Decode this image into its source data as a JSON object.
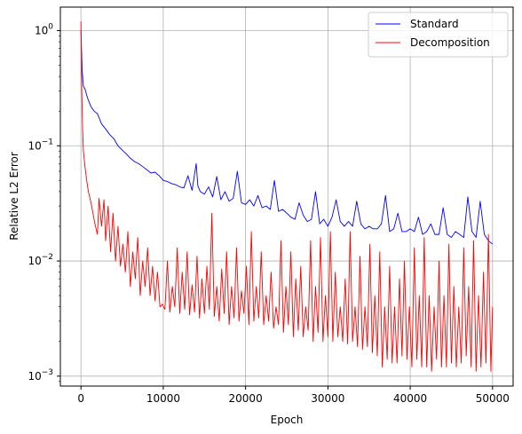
{
  "chart_data": {
    "type": "line",
    "title": "",
    "xlabel": "Epoch",
    "ylabel": "Relative L2 Error",
    "xlim": [
      -2500,
      52500
    ],
    "ylim": [
      0.00082,
      1.6
    ],
    "yscale": "log",
    "grid": true,
    "legend_position": "top-right",
    "x_ticks": [
      0,
      10000,
      20000,
      30000,
      40000,
      50000
    ],
    "x_tick_labels": [
      "0",
      "10000",
      "20000",
      "30000",
      "40000",
      "50000"
    ],
    "y_ticks": [
      {
        "value": 0.001,
        "mantissa": "10",
        "exp": "−3"
      },
      {
        "value": 0.01,
        "mantissa": "10",
        "exp": "−2"
      },
      {
        "value": 0.1,
        "mantissa": "10",
        "exp": "−1"
      },
      {
        "value": 1,
        "mantissa": "10",
        "exp": "0"
      }
    ],
    "series": [
      {
        "name": "Standard",
        "color": "#0000ff",
        "x": [
          0,
          150,
          300,
          500,
          800,
          1200,
          1600,
          2000,
          2500,
          3000,
          3500,
          4000,
          4500,
          5000,
          5500,
          6000,
          6500,
          7000,
          7500,
          8000,
          8500,
          9000,
          9500,
          10000,
          10500,
          11000,
          11500,
          12000,
          12500,
          13000,
          13500,
          14000,
          14200,
          14500,
          15000,
          15500,
          16000,
          16500,
          17000,
          17500,
          18000,
          18500,
          19000,
          19500,
          20000,
          20500,
          21000,
          21500,
          22000,
          22500,
          23000,
          23500,
          24000,
          24500,
          25000,
          25500,
          26000,
          26500,
          27000,
          27500,
          28000,
          28500,
          29000,
          29500,
          30000,
          30500,
          31000,
          31500,
          32000,
          32500,
          33000,
          33500,
          34000,
          34500,
          35000,
          35500,
          36000,
          36500,
          37000,
          37500,
          38000,
          38500,
          39000,
          39500,
          40000,
          40500,
          41000,
          41500,
          42000,
          42500,
          43000,
          43500,
          44000,
          44500,
          45000,
          45500,
          46000,
          46500,
          47000,
          47500,
          48000,
          48500,
          49000,
          49500,
          50000
        ],
        "y": [
          1.0,
          0.45,
          0.33,
          0.31,
          0.26,
          0.22,
          0.2,
          0.19,
          0.155,
          0.14,
          0.125,
          0.115,
          0.1,
          0.092,
          0.085,
          0.078,
          0.073,
          0.07,
          0.066,
          0.062,
          0.058,
          0.059,
          0.055,
          0.05,
          0.049,
          0.047,
          0.046,
          0.044,
          0.043,
          0.055,
          0.041,
          0.07,
          0.045,
          0.04,
          0.038,
          0.044,
          0.036,
          0.054,
          0.034,
          0.04,
          0.033,
          0.035,
          0.06,
          0.032,
          0.031,
          0.034,
          0.03,
          0.037,
          0.029,
          0.03,
          0.028,
          0.05,
          0.027,
          0.028,
          0.026,
          0.024,
          0.023,
          0.032,
          0.025,
          0.022,
          0.023,
          0.04,
          0.021,
          0.023,
          0.02,
          0.024,
          0.034,
          0.022,
          0.02,
          0.022,
          0.02,
          0.033,
          0.021,
          0.019,
          0.02,
          0.019,
          0.019,
          0.021,
          0.037,
          0.018,
          0.019,
          0.026,
          0.018,
          0.018,
          0.019,
          0.018,
          0.024,
          0.017,
          0.018,
          0.021,
          0.017,
          0.017,
          0.029,
          0.017,
          0.016,
          0.018,
          0.017,
          0.016,
          0.036,
          0.018,
          0.016,
          0.033,
          0.017,
          0.015,
          0.014
        ]
      },
      {
        "name": "Decomposition",
        "color": "#ff0000",
        "x": [
          0,
          100,
          200,
          300,
          500,
          700,
          900,
          1100,
          1300,
          1500,
          1700,
          2000,
          2200,
          2500,
          2800,
          3000,
          3300,
          3600,
          3900,
          4200,
          4500,
          4800,
          5100,
          5400,
          5700,
          6000,
          6300,
          6600,
          6900,
          7200,
          7500,
          7800,
          8100,
          8400,
          8700,
          9000,
          9300,
          9600,
          9900,
          10200,
          10500,
          10800,
          11100,
          11400,
          11700,
          12000,
          12300,
          12600,
          12900,
          13200,
          13500,
          13800,
          14100,
          14400,
          14700,
          15000,
          15300,
          15600,
          15900,
          16200,
          16500,
          16800,
          17100,
          17400,
          17700,
          18000,
          18300,
          18600,
          18900,
          19200,
          19500,
          19800,
          20100,
          20400,
          20700,
          21000,
          21300,
          21600,
          21900,
          22200,
          22500,
          22800,
          23100,
          23400,
          23700,
          24000,
          24300,
          24600,
          24900,
          25200,
          25500,
          25800,
          26100,
          26400,
          26700,
          27000,
          27300,
          27600,
          27900,
          28200,
          28500,
          28800,
          29100,
          29400,
          29700,
          30000,
          30300,
          30600,
          30900,
          31200,
          31500,
          31800,
          32100,
          32400,
          32700,
          33000,
          33300,
          33600,
          33900,
          34200,
          34500,
          34800,
          35100,
          35400,
          35700,
          36000,
          36300,
          36600,
          36900,
          37200,
          37500,
          37800,
          38100,
          38400,
          38700,
          39000,
          39300,
          39600,
          39900,
          40200,
          40500,
          40800,
          41100,
          41400,
          41700,
          42000,
          42300,
          42600,
          42900,
          43200,
          43500,
          43800,
          44100,
          44400,
          44700,
          45000,
          45300,
          45600,
          45900,
          46200,
          46500,
          46800,
          47100,
          47400,
          47700,
          48000,
          48300,
          48600,
          48900,
          49200,
          49500,
          49800,
          50000
        ],
        "y": [
          1.2,
          0.3,
          0.14,
          0.09,
          0.065,
          0.05,
          0.04,
          0.035,
          0.03,
          0.025,
          0.021,
          0.017,
          0.035,
          0.02,
          0.034,
          0.015,
          0.03,
          0.012,
          0.026,
          0.01,
          0.02,
          0.009,
          0.014,
          0.008,
          0.018,
          0.006,
          0.012,
          0.007,
          0.016,
          0.005,
          0.01,
          0.006,
          0.013,
          0.005,
          0.009,
          0.0045,
          0.008,
          0.004,
          0.0042,
          0.0038,
          0.01,
          0.0036,
          0.006,
          0.004,
          0.013,
          0.0035,
          0.008,
          0.0038,
          0.012,
          0.0034,
          0.0062,
          0.0036,
          0.011,
          0.0032,
          0.007,
          0.0035,
          0.009,
          0.0038,
          0.026,
          0.0033,
          0.006,
          0.003,
          0.0085,
          0.0035,
          0.012,
          0.0028,
          0.006,
          0.0032,
          0.013,
          0.003,
          0.0055,
          0.0035,
          0.009,
          0.0028,
          0.018,
          0.003,
          0.006,
          0.0032,
          0.012,
          0.0028,
          0.005,
          0.003,
          0.008,
          0.0026,
          0.004,
          0.0028,
          0.015,
          0.0024,
          0.006,
          0.0028,
          0.012,
          0.0022,
          0.007,
          0.0025,
          0.009,
          0.0022,
          0.004,
          0.0025,
          0.015,
          0.002,
          0.006,
          0.0024,
          0.016,
          0.002,
          0.005,
          0.0022,
          0.018,
          0.002,
          0.008,
          0.0022,
          0.004,
          0.002,
          0.007,
          0.0019,
          0.018,
          0.002,
          0.004,
          0.0018,
          0.011,
          0.0017,
          0.004,
          0.0018,
          0.014,
          0.0016,
          0.005,
          0.0015,
          0.012,
          0.0012,
          0.004,
          0.0014,
          0.009,
          0.0013,
          0.004,
          0.0013,
          0.007,
          0.0015,
          0.01,
          0.0014,
          0.004,
          0.0012,
          0.013,
          0.0014,
          0.005,
          0.0012,
          0.016,
          0.0012,
          0.005,
          0.0011,
          0.004,
          0.0014,
          0.01,
          0.0012,
          0.005,
          0.0012,
          0.014,
          0.0013,
          0.006,
          0.0012,
          0.004,
          0.0013,
          0.013,
          0.0015,
          0.006,
          0.0012,
          0.015,
          0.0011,
          0.005,
          0.0012,
          0.008,
          0.0013,
          0.017,
          0.0011,
          0.004
        ]
      }
    ]
  }
}
